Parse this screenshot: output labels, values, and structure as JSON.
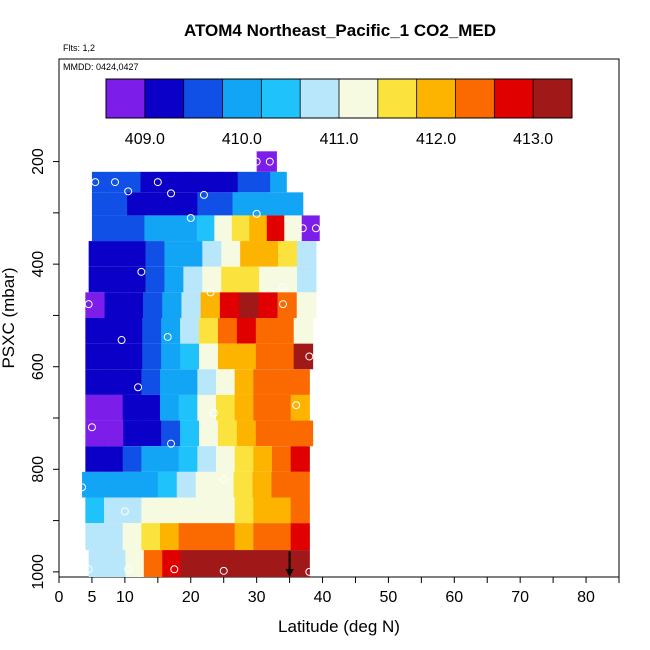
{
  "chart_data": {
    "type": "heatmap",
    "title": "ATOM4 Northeast_Pacific_1 CO2_MED",
    "flights_label": "Flts: 1,2",
    "date_label": "MMDD: 0424,0427",
    "xlabel": "Latitude (deg N)",
    "ylabel": "PSXC (mbar)",
    "xlim": [
      0,
      85
    ],
    "ylim": [
      1010,
      0
    ],
    "x_ticks": [
      0,
      5,
      10,
      20,
      30,
      40,
      50,
      60,
      70,
      80
    ],
    "y_ticks": [
      200,
      400,
      600,
      800,
      1000
    ],
    "grid": false,
    "colorbar": {
      "min": 408.6,
      "max": 413.4,
      "ticks": [
        409.0,
        410.0,
        411.0,
        412.0,
        413.0
      ],
      "tick_labels": [
        "409.0",
        "410.0",
        "411.0",
        "412.0",
        "413.0"
      ],
      "bins": 12,
      "colors": [
        "#7d1dea",
        "#0a00c8",
        "#1050e6",
        "#12a4f5",
        "#1fc2fa",
        "#b8e6fa",
        "#f5fae0",
        "#fce23c",
        "#fcb400",
        "#fa6a00",
        "#e00000",
        "#a01818"
      ]
    },
    "layers": [
      {
        "p": 200,
        "lat_min": 30.0,
        "lat_max": 33.0,
        "values": [
          409.0,
          409.0
        ]
      },
      {
        "p": 240,
        "lat_min": 5.0,
        "lat_max": 34.5,
        "values": [
          409.6,
          409.6,
          409.5,
          409.4,
          409.4,
          409.3,
          409.3,
          409.3,
          409.4,
          409.5,
          409.7,
          409.8
        ]
      },
      {
        "p": 280,
        "lat_min": 5.0,
        "lat_max": 37.0,
        "values": [
          409.5,
          409.5,
          409.4,
          409.4,
          409.4,
          409.4,
          409.5,
          409.6,
          409.8,
          410.0,
          410.2,
          410.2
        ]
      },
      {
        "p": 330,
        "lat_min": 5.0,
        "lat_max": 39.5,
        "values": [
          409.6,
          409.6,
          409.7,
          409.8,
          409.9,
          410.2,
          410.5,
          411.0,
          411.5,
          412.0,
          412.6,
          411.2,
          409.0
        ]
      },
      {
        "p": 380,
        "lat_min": 4.5,
        "lat_max": 39.0,
        "values": [
          409.3,
          409.3,
          409.4,
          409.6,
          409.9,
          410.2,
          410.8,
          411.4,
          411.9,
          412.1,
          411.6,
          410.6
        ]
      },
      {
        "p": 430,
        "lat_min": 4.5,
        "lat_max": 39.0,
        "values": [
          409.2,
          409.2,
          409.3,
          409.6,
          410.0,
          410.6,
          411.1,
          411.5,
          411.7,
          411.4,
          411.0,
          410.6
        ]
      },
      {
        "p": 480,
        "lat_min": 4.0,
        "lat_max": 39.0,
        "values": [
          409.0,
          409.1,
          409.3,
          409.6,
          410.0,
          410.8,
          411.8,
          412.6,
          413.0,
          412.8,
          412.4,
          411.4
        ]
      },
      {
        "p": 530,
        "lat_min": 4.0,
        "lat_max": 38.5,
        "values": [
          409.1,
          409.1,
          409.2,
          409.5,
          409.9,
          410.6,
          411.6,
          412.4,
          412.6,
          412.4,
          412.2,
          411.2
        ]
      },
      {
        "p": 580,
        "lat_min": 4.0,
        "lat_max": 38.5,
        "values": [
          409.2,
          409.2,
          409.3,
          409.5,
          409.8,
          410.4,
          411.2,
          411.8,
          412.0,
          412.2,
          412.4,
          413.0
        ]
      },
      {
        "p": 630,
        "lat_min": 4.0,
        "lat_max": 38.0,
        "values": [
          409.2,
          409.2,
          409.3,
          409.5,
          409.8,
          410.2,
          410.8,
          411.4,
          411.8,
          412.2,
          412.4,
          412.2
        ]
      },
      {
        "p": 680,
        "lat_min": 4.0,
        "lat_max": 38.0,
        "values": [
          409.0,
          409.0,
          409.1,
          409.4,
          409.8,
          410.4,
          411.1,
          411.6,
          411.9,
          412.2,
          412.3,
          412.0
        ]
      },
      {
        "p": 730,
        "lat_min": 4.0,
        "lat_max": 38.5,
        "values": [
          408.8,
          408.9,
          409.1,
          409.3,
          409.7,
          410.4,
          411.1,
          411.6,
          411.9,
          412.2,
          412.4,
          412.2
        ]
      },
      {
        "p": 780,
        "lat_min": 4.0,
        "lat_max": 38.0,
        "values": [
          409.3,
          409.4,
          409.6,
          409.8,
          410.1,
          410.4,
          410.8,
          411.3,
          411.7,
          412.0,
          412.3,
          412.6
        ]
      },
      {
        "p": 830,
        "lat_min": 3.5,
        "lat_max": 38.0,
        "values": [
          410.0,
          410.0,
          410.0,
          410.2,
          410.4,
          410.7,
          411.0,
          411.3,
          411.6,
          411.8,
          412.2,
          412.4
        ]
      },
      {
        "p": 880,
        "lat_min": 4.0,
        "lat_max": 38.0,
        "values": [
          410.4,
          410.6,
          410.8,
          411.0,
          411.0,
          411.0,
          411.1,
          411.2,
          411.5,
          411.8,
          412.0,
          412.5
        ]
      },
      {
        "p": 930,
        "lat_min": 4.0,
        "lat_max": 38.0,
        "values": [
          410.6,
          410.8,
          411.0,
          411.6,
          412.0,
          412.2,
          412.3,
          412.2,
          412.0,
          412.2,
          412.4,
          412.6
        ]
      },
      {
        "p": 985,
        "lat_min": 4.5,
        "lat_max": 38.0,
        "values": [
          410.6,
          410.9,
          411.4,
          412.4,
          412.8,
          413.0,
          413.2,
          413.2,
          413.2,
          413.3,
          413.4,
          413.4
        ]
      }
    ],
    "sample_points": [
      {
        "lat": 30.0,
        "p": 200
      },
      {
        "lat": 32.0,
        "p": 200
      },
      {
        "lat": 5.5,
        "p": 240
      },
      {
        "lat": 8.5,
        "p": 240
      },
      {
        "lat": 15.0,
        "p": 240
      },
      {
        "lat": 10.5,
        "p": 258
      },
      {
        "lat": 17.0,
        "p": 262
      },
      {
        "lat": 22.0,
        "p": 265
      },
      {
        "lat": 30.0,
        "p": 302
      },
      {
        "lat": 20.0,
        "p": 310
      },
      {
        "lat": 37.0,
        "p": 330
      },
      {
        "lat": 39.0,
        "p": 330
      },
      {
        "lat": 12.5,
        "p": 415
      },
      {
        "lat": 34.0,
        "p": 445
      },
      {
        "lat": 23.0,
        "p": 455
      },
      {
        "lat": 4.5,
        "p": 478
      },
      {
        "lat": 34.0,
        "p": 478
      },
      {
        "lat": 9.5,
        "p": 548
      },
      {
        "lat": 16.5,
        "p": 542
      },
      {
        "lat": 38.0,
        "p": 580
      },
      {
        "lat": 12.0,
        "p": 640
      },
      {
        "lat": 36.0,
        "p": 675
      },
      {
        "lat": 23.5,
        "p": 690
      },
      {
        "lat": 5.0,
        "p": 718
      },
      {
        "lat": 17.0,
        "p": 750
      },
      {
        "lat": 3.5,
        "p": 835
      },
      {
        "lat": 25.0,
        "p": 820
      },
      {
        "lat": 10.0,
        "p": 882
      },
      {
        "lat": 4.5,
        "p": 995
      },
      {
        "lat": 10.5,
        "p": 995
      },
      {
        "lat": 17.5,
        "p": 995
      },
      {
        "lat": 25.0,
        "p": 998
      },
      {
        "lat": 38.0,
        "p": 1000
      }
    ],
    "marker": {
      "lat": 35.0,
      "p_top": 960,
      "p_bottom": 1010
    }
  }
}
